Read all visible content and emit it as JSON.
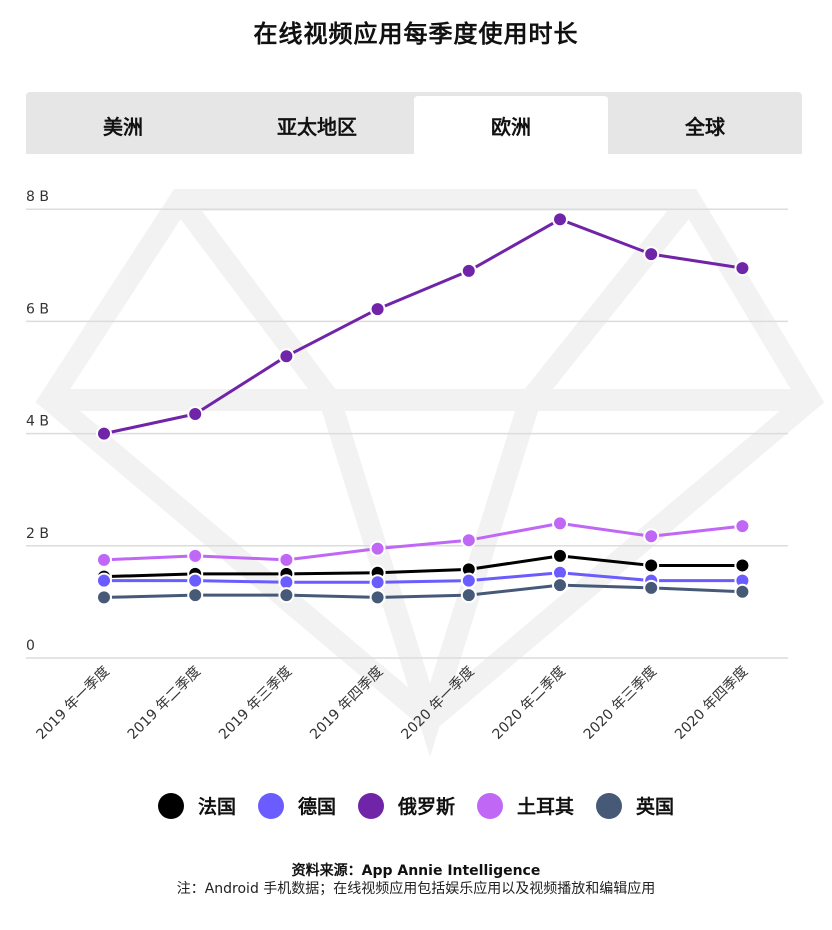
{
  "title": "在线视频应用每季度使用时长",
  "tabs": [
    {
      "label": "美洲",
      "active": false
    },
    {
      "label": "亚太地区",
      "active": false
    },
    {
      "label": "欧洲",
      "active": true
    },
    {
      "label": "全球",
      "active": false
    }
  ],
  "chart_data": {
    "type": "line",
    "categories": [
      "2019 年一季度",
      "2019 年二季度",
      "2019 年三季度",
      "2019 年四季度",
      "2020 年一季度",
      "2020 年二季度",
      "2020 年三季度",
      "2020 年四季度"
    ],
    "yticks": [
      {
        "value": 0,
        "label": "0"
      },
      {
        "value": 2,
        "label": "2 B"
      },
      {
        "value": 4,
        "label": "4 B"
      },
      {
        "value": 6,
        "label": "6 B"
      },
      {
        "value": 8,
        "label": "8 B"
      }
    ],
    "ylim": [
      0,
      8.2
    ],
    "unit": "B",
    "grid": true,
    "legend_position": "bottom",
    "series": [
      {
        "name": "法国",
        "color": "#000000",
        "values": [
          1.45,
          1.5,
          1.5,
          1.52,
          1.58,
          1.82,
          1.65,
          1.65
        ]
      },
      {
        "name": "德国",
        "color": "#6a5cff",
        "values": [
          1.38,
          1.38,
          1.35,
          1.35,
          1.38,
          1.52,
          1.38,
          1.38
        ]
      },
      {
        "name": "俄罗斯",
        "color": "#7024a8",
        "values": [
          4.0,
          4.35,
          5.38,
          6.22,
          6.9,
          7.82,
          7.2,
          6.95
        ]
      },
      {
        "name": "土耳其",
        "color": "#c067f5",
        "values": [
          1.75,
          1.82,
          1.75,
          1.95,
          2.1,
          2.4,
          2.17,
          2.35
        ]
      },
      {
        "name": "英国",
        "color": "#465a78",
        "values": [
          1.08,
          1.12,
          1.12,
          1.08,
          1.12,
          1.3,
          1.25,
          1.18
        ]
      }
    ]
  },
  "source": "资料来源：App Annie Intelligence",
  "note": "注：Android 手机数据；在线视频应用包括娱乐应用以及视频播放和编辑应用"
}
